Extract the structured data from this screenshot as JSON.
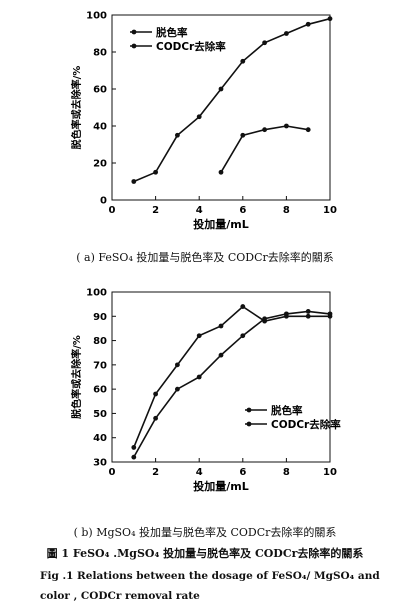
{
  "chart_data": [
    {
      "type": "line",
      "panel": "a",
      "caption": "( a)  FeSO₄ 投加量与脱色率及 CODCr去除率的關系",
      "xlabel": "投加量/mL",
      "ylabel": "脱色率或去除率/%",
      "xlim": [
        0,
        10
      ],
      "ylim": [
        0,
        100
      ],
      "xticks": [
        "0",
        "2",
        "4",
        "6",
        "8",
        "10"
      ],
      "yticks": [
        "0",
        "20",
        "40",
        "60",
        "80",
        "100"
      ],
      "legend_position": "top-left",
      "series": [
        {
          "name": "脱色率",
          "marker": "dot",
          "x": [
            1,
            2,
            3,
            4,
            5,
            6,
            7,
            8,
            9,
            10
          ],
          "y": [
            10,
            15,
            35,
            45,
            60,
            75,
            85,
            90,
            95,
            98
          ]
        },
        {
          "name": "CODCr去除率",
          "marker": "dot",
          "x": [
            5,
            6,
            7,
            8,
            9
          ],
          "y": [
            15,
            35,
            38,
            40,
            38
          ]
        }
      ]
    },
    {
      "type": "line",
      "panel": "b",
      "caption": "( b)  MgSO₄ 投加量与脱色率及 CODCr去除率的關系",
      "xlabel": "投加量/mL",
      "ylabel": "脱色率或去除率/%",
      "xlim": [
        0,
        10
      ],
      "ylim": [
        30,
        100
      ],
      "xticks": [
        "0",
        "2",
        "4",
        "6",
        "8",
        "10"
      ],
      "yticks": [
        "30",
        "40",
        "50",
        "60",
        "70",
        "80",
        "90",
        "100"
      ],
      "legend_position": "center-right",
      "series": [
        {
          "name": "脱色率",
          "marker": "dot",
          "x": [
            1,
            2,
            3,
            4,
            5,
            6,
            7,
            8,
            9,
            10
          ],
          "y": [
            36,
            58,
            70,
            82,
            86,
            94,
            88,
            90,
            90,
            90
          ]
        },
        {
          "name": "CODCr去除率",
          "marker": "dot",
          "x": [
            1,
            2,
            3,
            4,
            5,
            6,
            7,
            8,
            9,
            10
          ],
          "y": [
            32,
            48,
            60,
            65,
            74,
            82,
            89,
            91,
            92,
            91
          ]
        }
      ]
    }
  ],
  "figure": {
    "title": "圖 1   FeSO₄ .MgSO₄ 投加量与脱色率及 CODCr去除率的關系",
    "en_line1": "Fig .1    Relations between the dosage of FeSO₄/ MgSO₄ and",
    "en_line2": "color , CODCr removal rate"
  }
}
